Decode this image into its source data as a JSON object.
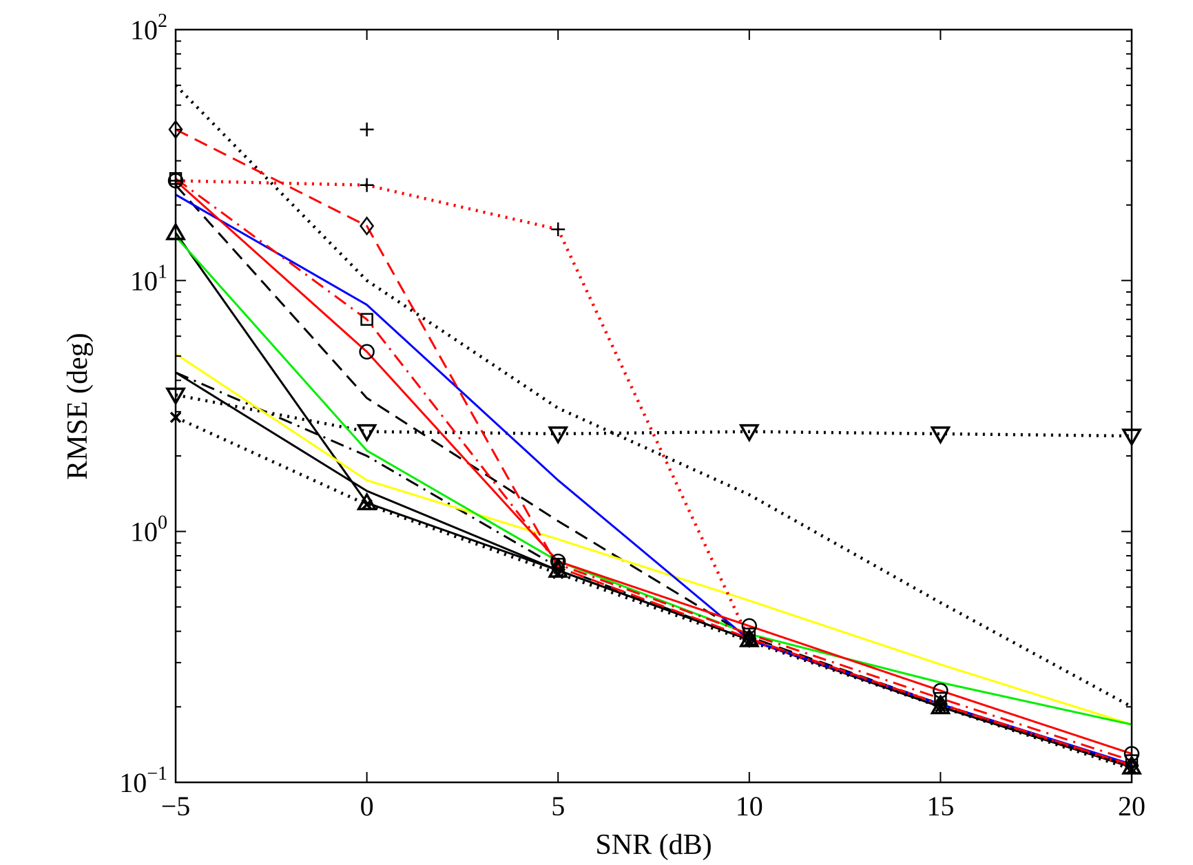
{
  "chart_data": {
    "type": "line",
    "title": "",
    "xlabel": "SNR (dB)",
    "ylabel": "RMSE (deg)",
    "xlim": [
      -5,
      20
    ],
    "ylim": [
      0.1,
      100
    ],
    "yscale": "log",
    "grid": false,
    "legend": "none",
    "x_ticks": [
      {
        "value": -5,
        "label": "−5"
      },
      {
        "value": 0,
        "label": "0"
      },
      {
        "value": 5,
        "label": "5"
      },
      {
        "value": 10,
        "label": "10"
      },
      {
        "value": 15,
        "label": "15"
      },
      {
        "value": 20,
        "label": "20"
      }
    ],
    "y_ticks": [
      {
        "value": 0.1,
        "base": "10",
        "exp": "−1"
      },
      {
        "value": 1,
        "base": "10",
        "exp": "0"
      },
      {
        "value": 10,
        "base": "10",
        "exp": "1"
      },
      {
        "value": 100,
        "base": "10",
        "exp": "2"
      }
    ],
    "series": [
      {
        "id": "s1",
        "color": "#000000",
        "dash": "dotted",
        "marker": "none",
        "x": [
          -5,
          0,
          5,
          10,
          15,
          20
        ],
        "y": [
          60,
          10,
          3.1,
          1.4,
          0.52,
          0.2
        ]
      },
      {
        "id": "s2",
        "color": "#000000",
        "dash": "dotted",
        "marker": "triangle-down",
        "x": [
          -5,
          0,
          5,
          10,
          15,
          20
        ],
        "y": [
          3.5,
          2.5,
          2.45,
          2.5,
          2.45,
          2.4
        ]
      },
      {
        "id": "s3",
        "color": "#000000",
        "dash": "dotted",
        "marker": "x",
        "x": [
          -5,
          0,
          5,
          10,
          15,
          20
        ],
        "y": [
          2.85,
          1.28,
          0.68,
          0.365,
          0.2,
          0.113
        ]
      },
      {
        "id": "s4",
        "color": "#000000",
        "dash": "solid",
        "marker": "triangle-up",
        "x": [
          -5,
          0,
          5,
          10,
          15,
          20
        ],
        "y": [
          15.5,
          1.3,
          0.7,
          0.37,
          0.2,
          0.115
        ]
      },
      {
        "id": "s5",
        "color": "#000000",
        "dash": "solid",
        "marker": "none",
        "x": [
          -5,
          0,
          5,
          10,
          15,
          20
        ],
        "y": [
          4.3,
          1.45,
          0.7,
          0.37,
          0.2,
          0.115
        ]
      },
      {
        "id": "s6",
        "color": "#000000",
        "dash": "dashdot",
        "marker": "none",
        "x": [
          -5,
          0,
          5,
          10,
          15,
          20
        ],
        "y": [
          4.3,
          2.0,
          0.72,
          0.37,
          0.2,
          0.115
        ]
      },
      {
        "id": "s7",
        "color": "#000000",
        "dash": "dashed",
        "marker": "none",
        "x": [
          -5,
          0,
          5,
          10,
          15,
          20
        ],
        "y": [
          24,
          3.4,
          1.1,
          0.38,
          0.205,
          0.116
        ]
      },
      {
        "id": "s8",
        "color": "#ffff00",
        "dash": "solid",
        "marker": "none",
        "x": [
          -5,
          0,
          5,
          10,
          15,
          20
        ],
        "y": [
          5.1,
          1.6,
          0.93,
          0.53,
          0.295,
          0.17
        ]
      },
      {
        "id": "s9",
        "color": "#00ee00",
        "dash": "solid",
        "marker": "none",
        "x": [
          -5,
          0,
          5,
          10,
          15,
          20
        ],
        "y": [
          15,
          2.1,
          0.76,
          0.39,
          0.25,
          0.17
        ]
      },
      {
        "id": "s10",
        "color": "#0000ff",
        "dash": "solid",
        "marker": "none",
        "x": [
          -5,
          0,
          5,
          10,
          15,
          20
        ],
        "y": [
          22,
          8,
          1.6,
          0.37,
          0.205,
          0.118
        ]
      },
      {
        "id": "s11",
        "color": "#ff0000",
        "dash": "solid",
        "marker": "circle",
        "x": [
          -5,
          0,
          5,
          10,
          15,
          20
        ],
        "y": [
          25,
          5.2,
          0.76,
          0.42,
          0.232,
          0.13
        ]
      },
      {
        "id": "s12",
        "color": "#ff0000",
        "dash": "dashdot",
        "marker": "square",
        "x": [
          -5,
          0,
          5,
          10,
          15,
          20
        ],
        "y": [
          25.5,
          7.0,
          0.74,
          0.39,
          0.216,
          0.122
        ]
      },
      {
        "id": "s13",
        "color": "#ff0000",
        "dash": "dashed",
        "marker": "diamond",
        "x": [
          -5,
          0,
          5,
          10,
          15,
          20
        ],
        "y": [
          40,
          16.5,
          0.72,
          0.375,
          0.205,
          0.117
        ]
      },
      {
        "id": "s14",
        "color": "#ff0000",
        "dash": "dotted",
        "marker": "plus",
        "x": [
          -5,
          0,
          5,
          10,
          15,
          20
        ],
        "y": [
          25,
          24,
          16,
          0.37,
          0.205,
          0.116
        ]
      },
      {
        "id": "s15",
        "color": "#000000",
        "dash": "none",
        "marker": "plus",
        "x": [
          0
        ],
        "y": [
          40
        ]
      }
    ]
  }
}
